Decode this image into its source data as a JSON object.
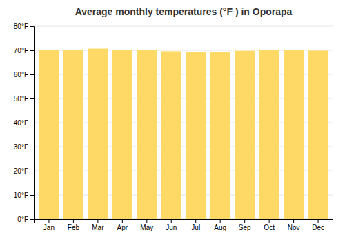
{
  "chart_data": {
    "type": "bar",
    "title": "Average monthly temperatures (°F ) in Oporapa",
    "categories": [
      "Jan",
      "Feb",
      "Mar",
      "Apr",
      "May",
      "Jun",
      "Jul",
      "Aug",
      "Sep",
      "Oct",
      "Nov",
      "Dec"
    ],
    "values": [
      70.0,
      70.3,
      70.7,
      70.2,
      70.2,
      69.6,
      69.3,
      69.3,
      69.8,
      70.2,
      70.0,
      69.9
    ],
    "color": "#FFD966",
    "ylim": [
      0,
      80
    ],
    "yticks": [
      {
        "value": 0,
        "label": "0°F"
      },
      {
        "value": 10,
        "label": "10°F"
      },
      {
        "value": 20,
        "label": "20°F"
      },
      {
        "value": 30,
        "label": "30°F"
      },
      {
        "value": 40,
        "label": "40°F"
      },
      {
        "value": 50,
        "label": "50°F"
      },
      {
        "value": 60,
        "label": "60°F"
      },
      {
        "value": 70,
        "label": "70°F"
      },
      {
        "value": 80,
        "label": "80°F"
      }
    ],
    "grid": true
  }
}
